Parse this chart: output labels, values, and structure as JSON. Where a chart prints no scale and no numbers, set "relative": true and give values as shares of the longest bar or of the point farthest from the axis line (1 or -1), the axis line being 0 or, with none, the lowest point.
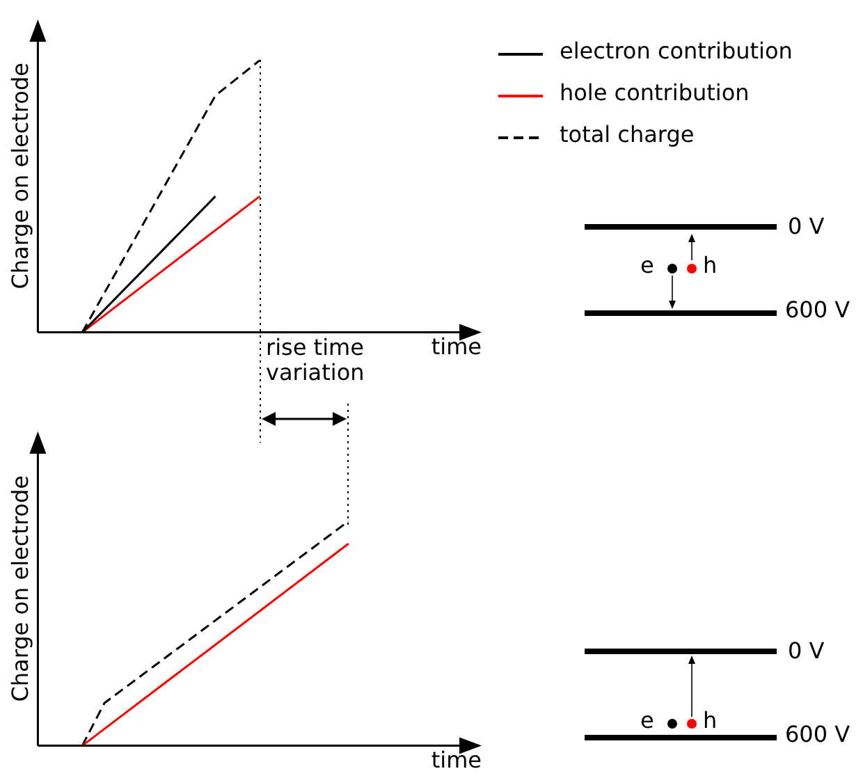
{
  "chart_data": [
    {
      "type": "line",
      "relative": true,
      "xlabel": "time",
      "ylabel": "Charge on electrode",
      "tick_labels": false,
      "grid": false,
      "marker": "none",
      "legend": "right",
      "categories": [
        null,
        null,
        null,
        null,
        null,
        null,
        null,
        null,
        null,
        null,
        null,
        null,
        null,
        null,
        null,
        null,
        null,
        null,
        null,
        null,
        null
      ],
      "series": [
        {
          "name": "electron contribution",
          "color": "#000000",
          "line_style": "solid",
          "values": [
            null,
            null,
            0,
            null,
            null,
            null,
            null,
            null,
            0.5,
            null,
            null,
            null,
            null,
            null,
            null,
            null,
            null,
            null,
            null,
            null,
            null
          ]
        },
        {
          "name": "hole contribution",
          "color": "#ff0000",
          "line_style": "solid",
          "values": [
            null,
            null,
            0,
            null,
            null,
            null,
            null,
            null,
            null,
            null,
            0.5,
            null,
            null,
            null,
            null,
            null,
            null,
            null,
            null,
            null,
            null
          ]
        },
        {
          "name": "total charge",
          "color": "#000000",
          "line_style": "dashed",
          "values": [
            null,
            null,
            0,
            null,
            null,
            null,
            null,
            null,
            0.87,
            null,
            1,
            null,
            null,
            null,
            null,
            null,
            null,
            null,
            null,
            null,
            null
          ]
        }
      ],
      "annotations": [
        "rise time variation",
        "0 V",
        "600 V",
        "e",
        "h"
      ]
    },
    {
      "type": "line",
      "relative": true,
      "xlabel": "time",
      "ylabel": "Charge on electrode",
      "tick_labels": false,
      "grid": false,
      "marker": "none",
      "categories": [
        null,
        null,
        null,
        null,
        null,
        null,
        null,
        null,
        null,
        null,
        null,
        null,
        null,
        null,
        null,
        null,
        null,
        null,
        null,
        null,
        null
      ],
      "series": [
        {
          "color": "#ff0000",
          "line_style": "solid",
          "values": [
            null,
            null,
            0,
            null,
            null,
            null,
            null,
            null,
            null,
            null,
            null,
            null,
            null,
            null,
            0.9,
            null,
            null,
            null,
            null,
            null,
            null
          ]
        },
        {
          "color": "#000000",
          "line_style": "dashed",
          "values": [
            null,
            null,
            0,
            0.19,
            null,
            null,
            null,
            null,
            null,
            null,
            null,
            null,
            null,
            null,
            1,
            null,
            null,
            null,
            null,
            null,
            null
          ]
        }
      ],
      "annotations": [
        "0 V",
        "600 V",
        "e",
        "h"
      ]
    }
  ]
}
